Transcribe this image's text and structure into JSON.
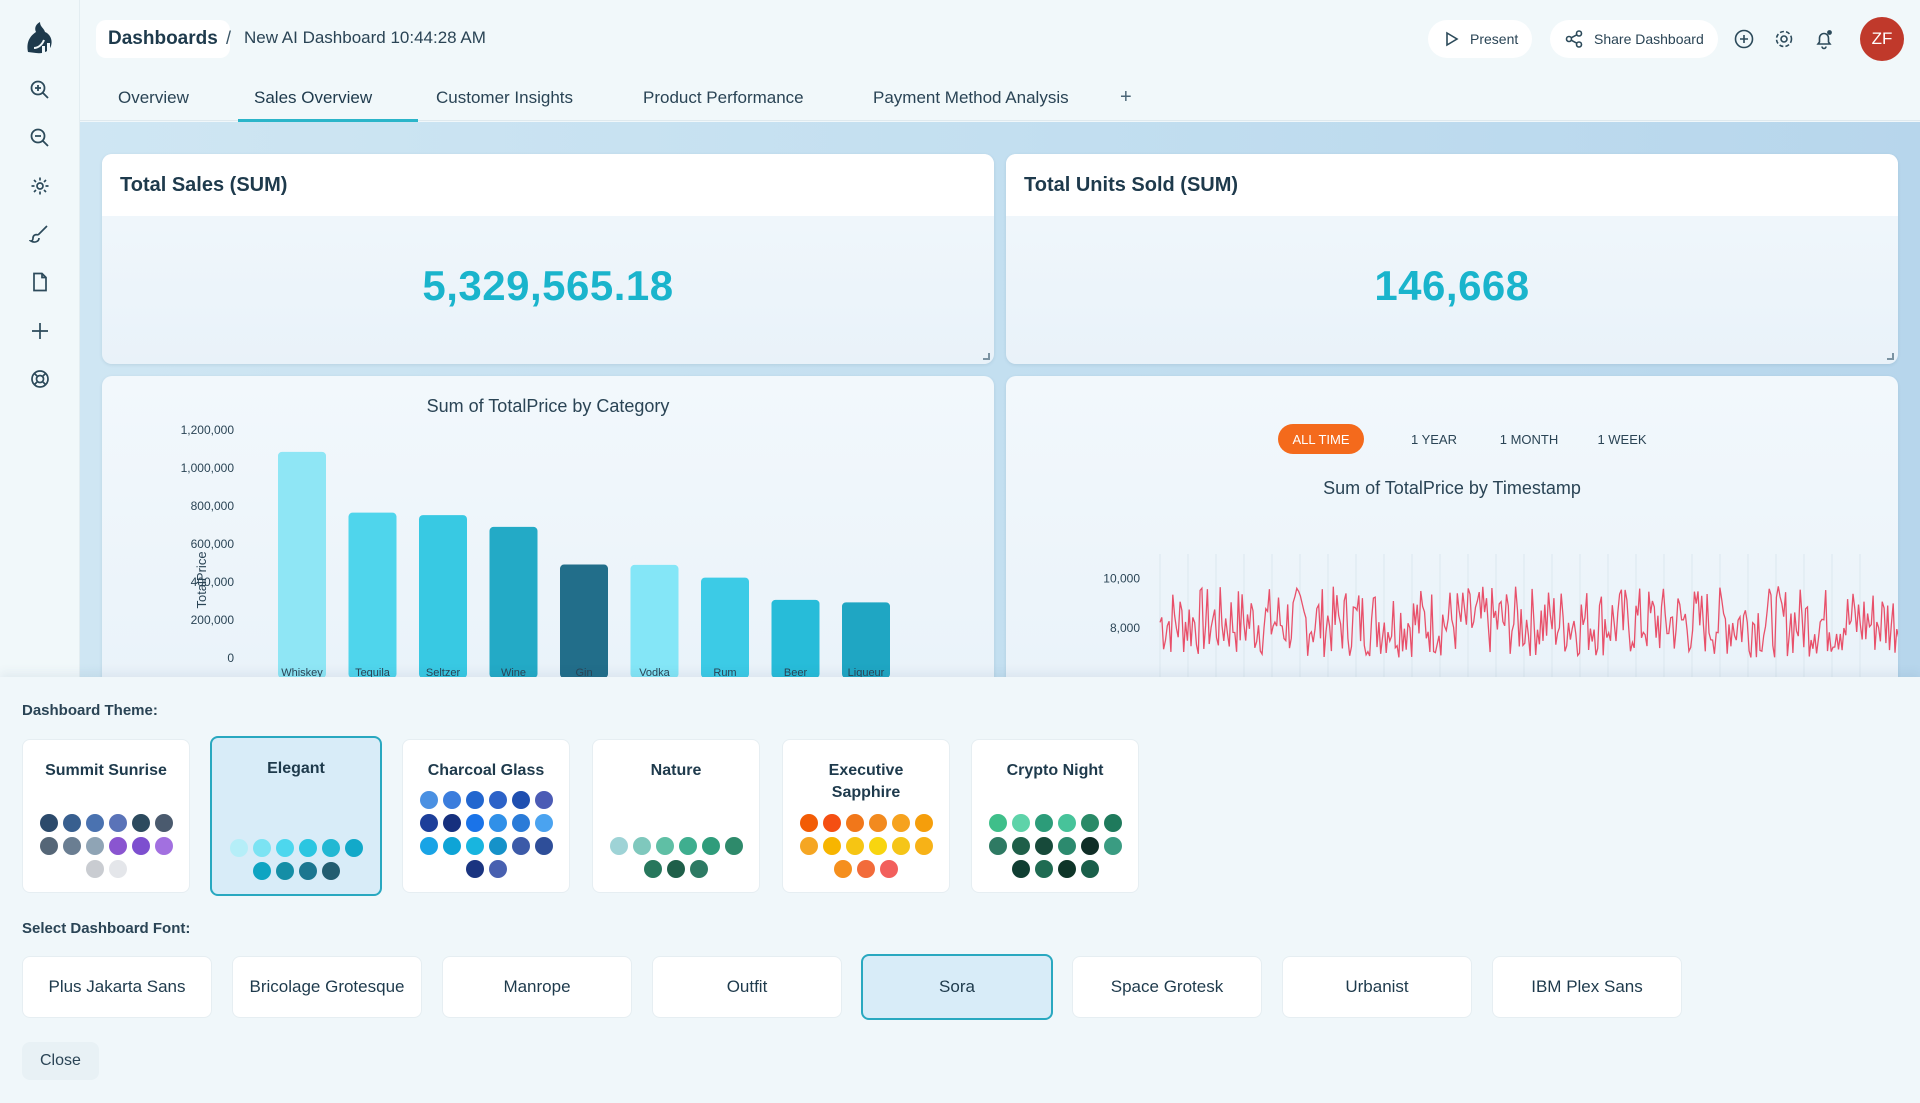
{
  "rail": {
    "icons": [
      "zoom-in-icon",
      "zoom-out-icon",
      "gear-icon",
      "brush-icon",
      "file-icon",
      "plus-icon",
      "globe-icon"
    ]
  },
  "header": {
    "breadcrumb_root": "Dashboards",
    "separator": "/",
    "current": "New AI Dashboard 10:44:28 AM",
    "present_label": "Present",
    "share_label": "Share Dashboard",
    "avatar_initials": "ZF"
  },
  "tabs": [
    {
      "label": "Overview"
    },
    {
      "label": "Sales Overview",
      "active": true
    },
    {
      "label": "Customer Insights"
    },
    {
      "label": "Product Performance"
    },
    {
      "label": "Payment Method Analysis"
    }
  ],
  "tab_add": "+",
  "cards": {
    "total_sales": {
      "title": "Total Sales (SUM)",
      "value": "5,329,565.18"
    },
    "total_units": {
      "title": "Total Units Sold (SUM)",
      "value": "146,668"
    }
  },
  "chart_data": [
    {
      "type": "bar",
      "title": "Sum of TotalPrice by Category",
      "xlabel": "",
      "ylabel": "TotalPrice",
      "categories": [
        "Whiskey",
        "Tequila",
        "Seltzer",
        "Wine",
        "Gin",
        "Vodka",
        "Rum",
        "Beer",
        "Liqueur"
      ],
      "values": [
        1085000,
        765000,
        752000,
        690000,
        492000,
        490000,
        423000,
        306000,
        293000
      ],
      "yticks": [
        "0",
        "200,000",
        "400,000",
        "600,000",
        "800,000",
        "1,000,000",
        "1,200,000"
      ],
      "ylim": [
        0,
        1200000
      ],
      "colors": [
        "#8fe6f5",
        "#4fd5ec",
        "#38c9e3",
        "#23aac6",
        "#226e8a",
        "#84e6f7",
        "#3ccbe6",
        "#27bcd9",
        "#1fa6c3"
      ]
    },
    {
      "type": "line",
      "title": "Sum of TotalPrice by Timestamp",
      "ylabel": "",
      "yticks": [
        "8,000",
        "10,000"
      ],
      "ylim": [
        6000,
        11000
      ],
      "color": "#e8506a",
      "range_options": [
        "ALL TIME",
        "1 YEAR",
        "1 MONTH",
        "1 WEEK"
      ],
      "active_range": "ALL TIME"
    }
  ],
  "panel": {
    "theme_label": "Dashboard Theme:",
    "font_label": "Select Dashboard Font:",
    "close_label": "Close",
    "themes": [
      {
        "name": "Summit Sunrise",
        "colors": [
          "#2c4a6b",
          "#385f8f",
          "#4a72b0",
          "#5a73b8",
          "#2c4a5e",
          "#4a5a6e",
          "#556677",
          "#6a7e92",
          "#8fa4b5",
          "#8a55d0",
          "#7d4fcf",
          "#a270e0",
          "#c9ccd1",
          "#e4e6ea"
        ]
      },
      {
        "name": "Elegant",
        "selected": true,
        "colors": [
          "#b5eef8",
          "#7be3f3",
          "#4dd7ee",
          "#2bc6e1",
          "#22b8d3",
          "#12a9c9",
          "#0ea4c2",
          "#158ea6",
          "#1b7690",
          "#235d70"
        ]
      },
      {
        "name": "Charcoal Glass",
        "colors": [
          "#4a90e2",
          "#3b7ddd",
          "#2266cf",
          "#2c62c8",
          "#1f4fb0",
          "#4b5bb5",
          "#1d3f9a",
          "#16307e",
          "#1a73e8",
          "#3090e8",
          "#2a7bd8",
          "#4aa3f0",
          "#19a4e6",
          "#0ea4d6",
          "#18b5df",
          "#1592c9",
          "#3c5aa8",
          "#2e4e99",
          "#1a3480",
          "#4860b0"
        ]
      },
      {
        "name": "Nature",
        "colors": [
          "#9ed3d6",
          "#7fc8bd",
          "#5fbfa5",
          "#3fae8f",
          "#2f9c7b",
          "#2e8a6b",
          "#27775c",
          "#1f5f49",
          "#2d7a63"
        ]
      },
      {
        "name": "Executive Sapphire",
        "colors": [
          "#f25c05",
          "#f54f12",
          "#f1771a",
          "#f28a1f",
          "#f6a21e",
          "#f59e0b",
          "#f5a623",
          "#f7b500",
          "#f6c513",
          "#f8d50f",
          "#f5c518",
          "#f7b217",
          "#f58f1d",
          "#f26b3a",
          "#f25f5c"
        ]
      },
      {
        "name": "Crypto Night",
        "colors": [
          "#3fbf8a",
          "#5ed3a9",
          "#2c9c79",
          "#47c39a",
          "#2a8a67",
          "#1f7a5c",
          "#2e7a63",
          "#1f5f49",
          "#174a3a",
          "#2c8a6e",
          "#0f2e26",
          "#3a9c82",
          "#103e32",
          "#1f6b52",
          "#0e3528",
          "#1a5f4a"
        ]
      }
    ],
    "fonts": [
      {
        "name": "Plus Jakarta Sans"
      },
      {
        "name": "Bricolage Grotesque"
      },
      {
        "name": "Manrope"
      },
      {
        "name": "Outfit"
      },
      {
        "name": "Sora",
        "selected": true
      },
      {
        "name": "Space Grotesk"
      },
      {
        "name": "Urbanist"
      },
      {
        "name": "IBM Plex Sans"
      }
    ]
  }
}
